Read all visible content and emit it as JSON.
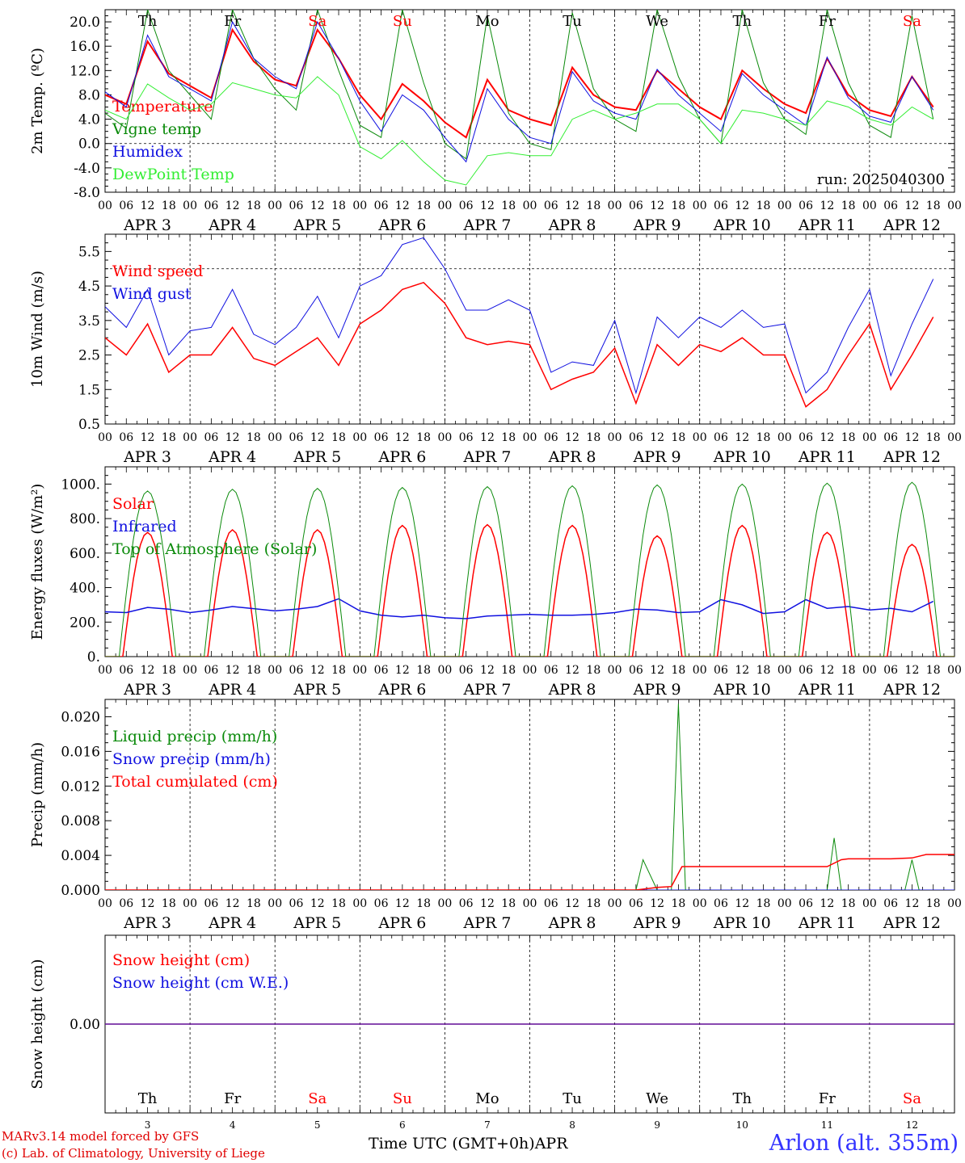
{
  "chart_data": [
    {
      "id": "temperature",
      "type": "line",
      "ylabel": "2m Temp. (ºC)",
      "ylim": [
        -8,
        22
      ],
      "yticks": [
        "20.0",
        "16.0",
        "12.0",
        "8.0",
        "4.0",
        "0.0",
        "-4.0",
        "-8.0"
      ],
      "yticks_values": [
        20,
        16,
        12,
        8,
        4,
        0,
        -4,
        -8
      ],
      "reference_line": 0,
      "annotation": "run: 2025040300",
      "weekdays_top": true,
      "series": [
        {
          "name": "Temperature",
          "color": "#ff0000",
          "width": 2,
          "x": [
            0,
            6,
            12,
            18,
            24,
            30,
            36,
            42,
            48,
            54,
            60,
            66,
            72,
            78,
            84,
            90,
            96,
            102,
            108,
            114,
            120,
            126,
            132,
            138,
            144,
            150,
            156,
            162,
            168,
            174,
            180,
            186,
            192,
            198,
            204,
            210,
            216,
            222,
            228,
            234
          ],
          "y": [
            8,
            6.5,
            16.8,
            11.5,
            9.5,
            7.5,
            18.7,
            13.5,
            10.5,
            9.5,
            18.7,
            14,
            8,
            4,
            9.8,
            7,
            3.5,
            1,
            10.5,
            5.5,
            4,
            3,
            12.5,
            8,
            6,
            5.5,
            12,
            9,
            6,
            4,
            12,
            9,
            6.5,
            5,
            14,
            8,
            5.5,
            4.5,
            11,
            6
          ]
        },
        {
          "name": "Vigne temp",
          "color": "#0a8a0a",
          "width": 1,
          "x": [
            0,
            6,
            12,
            18,
            24,
            30,
            36,
            42,
            48,
            54,
            60,
            66,
            72,
            78,
            84,
            90,
            96,
            102,
            108,
            114,
            120,
            126,
            132,
            138,
            144,
            150,
            156,
            162,
            168,
            174,
            180,
            186,
            192,
            198,
            204,
            210,
            216,
            222,
            228,
            234
          ],
          "y": [
            5,
            2.5,
            22,
            12,
            8,
            4,
            22,
            14,
            9,
            5.5,
            22,
            12,
            3,
            1,
            22,
            10,
            0,
            -2.5,
            21,
            5,
            0,
            -1,
            21.5,
            9,
            4,
            2,
            22,
            11,
            4,
            0,
            22,
            10,
            4,
            1.5,
            22,
            10,
            3,
            1,
            21,
            4
          ]
        },
        {
          "name": "Humidex",
          "color": "#1010e0",
          "width": 1,
          "x": [
            0,
            6,
            12,
            18,
            24,
            30,
            36,
            42,
            48,
            54,
            60,
            66,
            72,
            78,
            84,
            90,
            96,
            102,
            108,
            114,
            120,
            126,
            132,
            138,
            144,
            150,
            156,
            162,
            168,
            174,
            180,
            186,
            192,
            198,
            204,
            210,
            216,
            222,
            228,
            234
          ],
          "y": [
            8.5,
            6,
            17.8,
            11,
            9,
            7,
            20,
            14,
            11,
            9,
            20,
            14,
            7,
            2,
            8,
            5.5,
            1,
            -3,
            9,
            4,
            1,
            0,
            11.8,
            7,
            5,
            4,
            12.2,
            8,
            5,
            2,
            11.5,
            8,
            5.5,
            3,
            14.2,
            7.5,
            4.5,
            3.5,
            11,
            5.5
          ]
        },
        {
          "name": "DewPoint Temp",
          "color": "#33ee33",
          "width": 1,
          "x": [
            0,
            6,
            12,
            18,
            24,
            30,
            36,
            42,
            48,
            54,
            60,
            66,
            72,
            78,
            84,
            90,
            96,
            102,
            108,
            114,
            120,
            126,
            132,
            138,
            144,
            150,
            156,
            162,
            168,
            174,
            180,
            186,
            192,
            198,
            204,
            210,
            216,
            222,
            228,
            234
          ],
          "y": [
            5.5,
            4,
            9.8,
            7.5,
            5.5,
            6.5,
            10,
            9,
            8,
            7.5,
            11,
            8,
            -0.5,
            -2.5,
            0.5,
            -3,
            -6,
            -6.8,
            -2,
            -1.5,
            -2,
            -2,
            4,
            5.5,
            4,
            5,
            6.5,
            6.5,
            4,
            0,
            5.5,
            5,
            4,
            3,
            7,
            6,
            4,
            3,
            6,
            4
          ]
        }
      ]
    },
    {
      "id": "wind",
      "type": "line",
      "ylabel": "10m Wind (m/s)",
      "ylim": [
        0.5,
        6
      ],
      "yticks": [
        "5.5",
        "4.5",
        "3.5",
        "2.5",
        "1.5",
        "0.5"
      ],
      "yticks_values": [
        5.5,
        4.5,
        3.5,
        2.5,
        1.5,
        0.5
      ],
      "reference_line": 5,
      "series": [
        {
          "name": "Wind speed",
          "color": "#ff0000",
          "width": 1.5,
          "x": [
            0,
            6,
            12,
            18,
            24,
            30,
            36,
            42,
            48,
            54,
            60,
            66,
            72,
            78,
            84,
            90,
            96,
            102,
            108,
            114,
            120,
            126,
            132,
            138,
            144,
            150,
            156,
            162,
            168,
            174,
            180,
            186,
            192,
            198,
            204,
            210,
            216,
            222,
            228,
            234
          ],
          "y": [
            3,
            2.5,
            3.4,
            2,
            2.5,
            2.5,
            3.3,
            2.4,
            2.2,
            2.6,
            3,
            2.2,
            3.4,
            3.8,
            4.4,
            4.6,
            4,
            3,
            2.8,
            2.9,
            2.8,
            1.5,
            1.8,
            2,
            2.7,
            1.1,
            2.8,
            2.2,
            2.8,
            2.6,
            3,
            2.5,
            2.5,
            1,
            1.5,
            2.5,
            3.4,
            1.5,
            2.5,
            3.6
          ]
        },
        {
          "name": "Wind gust",
          "color": "#1010e0",
          "width": 1,
          "x": [
            0,
            6,
            12,
            18,
            24,
            30,
            36,
            42,
            48,
            54,
            60,
            66,
            72,
            78,
            84,
            90,
            96,
            102,
            108,
            114,
            120,
            126,
            132,
            138,
            144,
            150,
            156,
            162,
            168,
            174,
            180,
            186,
            192,
            198,
            204,
            210,
            216,
            222,
            228,
            234
          ],
          "y": [
            3.9,
            3.3,
            4.4,
            2.5,
            3.2,
            3.3,
            4.4,
            3.1,
            2.8,
            3.3,
            4.2,
            3,
            4.5,
            4.8,
            5.7,
            5.9,
            5,
            3.8,
            3.8,
            4.1,
            3.8,
            2,
            2.3,
            2.2,
            3.5,
            1.4,
            3.6,
            3,
            3.6,
            3.3,
            3.8,
            3.3,
            3.4,
            1.4,
            2,
            3.3,
            4.4,
            1.9,
            3.4,
            4.7
          ]
        }
      ]
    },
    {
      "id": "energy",
      "type": "line",
      "ylabel": "Energy fluxes (W/m²)",
      "ylim": [
        0,
        1100
      ],
      "yticks": [
        "1000.",
        "800.",
        "600.",
        "400.",
        "200.",
        "0."
      ],
      "yticks_values": [
        1000,
        800,
        600,
        400,
        200,
        0
      ],
      "series": [
        {
          "name": "Solar",
          "color": "#ff0000",
          "width": 1.5,
          "kind": "daily",
          "peaks": [
            720,
            735,
            735,
            760,
            765,
            760,
            700,
            760,
            720,
            650
          ],
          "start": 5,
          "end": 19
        },
        {
          "name": "Infrared",
          "color": "#1010e0",
          "width": 1.5,
          "x": [
            0,
            6,
            12,
            18,
            24,
            30,
            36,
            42,
            48,
            54,
            60,
            66,
            72,
            78,
            84,
            90,
            96,
            102,
            108,
            114,
            120,
            126,
            132,
            138,
            144,
            150,
            156,
            162,
            168,
            174,
            180,
            186,
            192,
            198,
            204,
            210,
            216,
            222,
            228,
            234
          ],
          "y": [
            260,
            255,
            285,
            275,
            255,
            270,
            290,
            278,
            265,
            275,
            290,
            335,
            265,
            240,
            230,
            240,
            225,
            220,
            235,
            240,
            245,
            240,
            240,
            245,
            255,
            275,
            270,
            255,
            260,
            330,
            300,
            250,
            260,
            330,
            280,
            290,
            270,
            280,
            260,
            320
          ]
        },
        {
          "name": "Top of Atmosphere (Solar)",
          "color": "#0a8a0a",
          "width": 1,
          "kind": "daily",
          "peaks": [
            960,
            970,
            975,
            980,
            985,
            990,
            995,
            1000,
            1005,
            1010
          ],
          "start": 4,
          "end": 20
        }
      ]
    },
    {
      "id": "precip",
      "type": "line",
      "ylabel": "Precip (mm/h)",
      "ylim": [
        0,
        0.022
      ],
      "yticks": [
        "0.020",
        "0.016",
        "0.012",
        "0.008",
        "0.004",
        "0.000"
      ],
      "yticks_values": [
        0.02,
        0.016,
        0.012,
        0.008,
        0.004,
        0.0
      ],
      "series": [
        {
          "name": "Liquid precip (mm/h)",
          "color": "#0a8a0a",
          "width": 1,
          "x": [
            0,
            144,
            150,
            152,
            156,
            160,
            162,
            164,
            166,
            168,
            192,
            204,
            206,
            208,
            210,
            212,
            240,
            222,
            224,
            226,
            228,
            230,
            232,
            234
          ],
          "y": [
            0,
            0,
            0,
            0.0035,
            0,
            0,
            0.0215,
            0,
            0,
            0,
            0,
            0,
            0.006,
            0,
            0,
            0,
            0,
            0,
            0,
            0,
            0.0035,
            0,
            0,
            0
          ]
        },
        {
          "name": "Snow precip (mm/h)",
          "color": "#1010e0",
          "width": 1,
          "x": [
            0,
            240
          ],
          "y": [
            0,
            0
          ]
        },
        {
          "name": "Total cumulated (cm)",
          "color": "#ff0000",
          "width": 1.5,
          "x": [
            0,
            150,
            156,
            160,
            163,
            168,
            192,
            204,
            208,
            210,
            216,
            222,
            228,
            232,
            240
          ],
          "y": [
            0,
            0,
            0.0003,
            0.0004,
            0.0027,
            0.0027,
            0.0027,
            0.0027,
            0.0035,
            0.0036,
            0.0036,
            0.0036,
            0.0037,
            0.0041,
            0.0041
          ]
        }
      ]
    },
    {
      "id": "snow",
      "type": "line",
      "ylabel": "Snow height (cm)",
      "ylim": [
        -1,
        1
      ],
      "yticks": [
        "0.00"
      ],
      "yticks_values": [
        0
      ],
      "weekdays_bottom": true,
      "series": [
        {
          "name": "Snow height (cm)",
          "color": "#ff0000",
          "width": 1.5,
          "x": [
            0,
            240
          ],
          "y": [
            0,
            0
          ]
        },
        {
          "name": "Snow height (cm W.E.)",
          "color": "#1010e0",
          "width": 1,
          "x": [
            0,
            240
          ],
          "y": [
            0,
            0
          ]
        }
      ]
    }
  ],
  "x_axis": {
    "hours": [
      "00",
      "06",
      "12",
      "18"
    ],
    "day_labels": [
      "APR  3",
      "APR  4",
      "APR  5",
      "APR  6",
      "APR  7",
      "APR  8",
      "APR  9",
      "APR 10",
      "APR 11",
      "APR 12"
    ],
    "day_numbers": [
      "3",
      "4",
      "5",
      "6",
      "7",
      "8",
      "9",
      "10",
      "11",
      "12"
    ],
    "last_hour": "00"
  },
  "weekdays": [
    {
      "label": "Th",
      "color": "#000000"
    },
    {
      "label": "Fr",
      "color": "#000000"
    },
    {
      "label": "Sa",
      "color": "#ff0000"
    },
    {
      "label": "Su",
      "color": "#ff0000"
    },
    {
      "label": "Mo",
      "color": "#000000"
    },
    {
      "label": "Tu",
      "color": "#000000"
    },
    {
      "label": "We",
      "color": "#000000"
    },
    {
      "label": "Th",
      "color": "#000000"
    },
    {
      "label": "Fr",
      "color": "#000000"
    },
    {
      "label": "Sa",
      "color": "#ff0000"
    }
  ],
  "footer": {
    "credit_line1": "MARv3.14 model forced by GFS",
    "credit_line2": "(c) Lab. of Climatology, University of Liege",
    "x_title": "Time UTC (GMT+0h)APR",
    "station": "Arlon (alt. 355m)"
  }
}
